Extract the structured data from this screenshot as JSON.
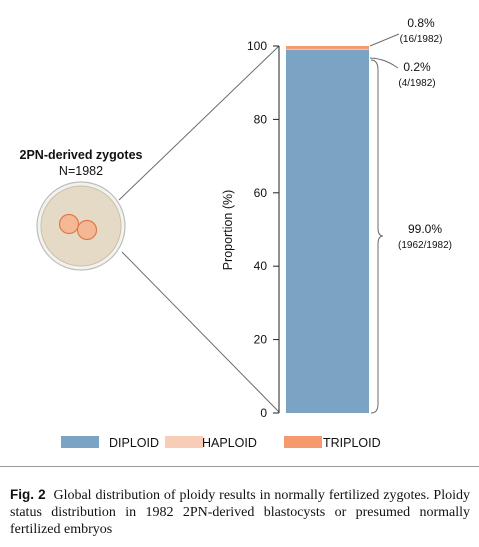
{
  "colors": {
    "diploid": "#7aa3c4",
    "haploid": "#f7cdb8",
    "triploid": "#f59a6e",
    "cell_fill": "#e4dac6",
    "pronucleus": "#f5b894",
    "pronucleus_stroke": "#e07a4a"
  },
  "zygote": {
    "title": "2PN-derived zygotes",
    "count": "N=1982"
  },
  "legend": [
    {
      "key": "diploid",
      "label": "DIPLOID"
    },
    {
      "key": "haploid",
      "label": "HAPLOID"
    },
    {
      "key": "triploid",
      "label": "TRIPLOID"
    }
  ],
  "annotations": {
    "triploid_pct": "0.8%",
    "triploid_count": "(16/1982)",
    "haploid_pct": "0.2%",
    "haploid_count": "(4/1982)",
    "diploid_pct": "99.0%",
    "diploid_count": "(1962/1982)"
  },
  "caption": {
    "label": "Fig. 2",
    "text": "Global distribution of ploidy results in normally fertilized zygotes. Ploidy status distribution in 1982 2PN-derived blastocysts or presumed normally fertilized embryos"
  },
  "chart_data": {
    "type": "bar",
    "stacked": true,
    "categories": [
      ""
    ],
    "series": [
      {
        "name": "DIPLOID",
        "values": [
          99.0
        ]
      },
      {
        "name": "HAPLOID",
        "values": [
          0.2
        ]
      },
      {
        "name": "TRIPLOID",
        "values": [
          0.8
        ]
      }
    ],
    "ylabel": "Proportion (%)",
    "ylim": [
      0,
      100
    ],
    "yticks": [
      0,
      20,
      40,
      60,
      80,
      100
    ],
    "grid": false,
    "legend_position": "bottom"
  }
}
